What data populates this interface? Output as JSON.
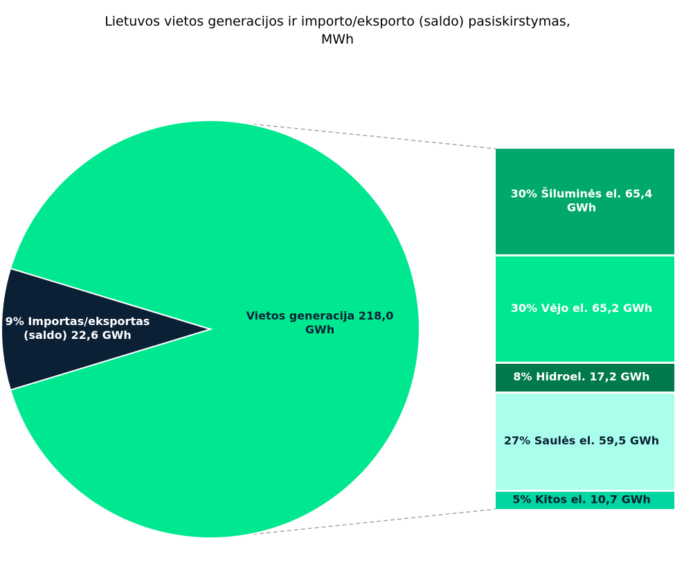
{
  "chart_data": {
    "type": "bar-of-pie",
    "title_lines": [
      "Lietuvos vietos generacijos ir importo/eksporto (saldo) pasiskirstymas,",
      "MWh"
    ],
    "pie": {
      "slices": [
        {
          "label_lines": [
            "Vietos generacija   218,0",
            "GWh"
          ],
          "value": 218.0,
          "color": "#00E88F",
          "text_color": "#0B1F35"
        },
        {
          "label_lines": [
            "9% Importas/eksportas",
            "(saldo)  22,6 GWh"
          ],
          "percent": 9,
          "value": 22.6,
          "color": "#0B1F35",
          "text_color": "#FFFFFF"
        }
      ]
    },
    "bar": {
      "segments": [
        {
          "label_lines": [
            "30% Šiluminės el.  65,4",
            "GWh"
          ],
          "percent": 30,
          "value": 65.4,
          "color": "#00A86B",
          "text_color": "#FFFFFF"
        },
        {
          "label_lines": [
            "30% Vėjo el.  65,2 GWh"
          ],
          "percent": 30,
          "value": 65.2,
          "color": "#00E88F",
          "text_color": "#FFFFFF"
        },
        {
          "label_lines": [
            "8% Hidroel.  17,2 GWh"
          ],
          "percent": 8,
          "value": 17.2,
          "color": "#007A4D",
          "text_color": "#FFFFFF"
        },
        {
          "label_lines": [
            "27% Saulės el.  59,5 GWh"
          ],
          "percent": 27,
          "value": 59.5,
          "color": "#A9FFEB",
          "text_color": "#0B1F35"
        },
        {
          "label_lines": [
            "5% Kitos el.  10,7 GWh"
          ],
          "percent": 5,
          "value": 10.7,
          "color": "#00D6A0",
          "text_color": "#0B1F35"
        }
      ]
    },
    "connector_color": "#A6A6A6"
  }
}
